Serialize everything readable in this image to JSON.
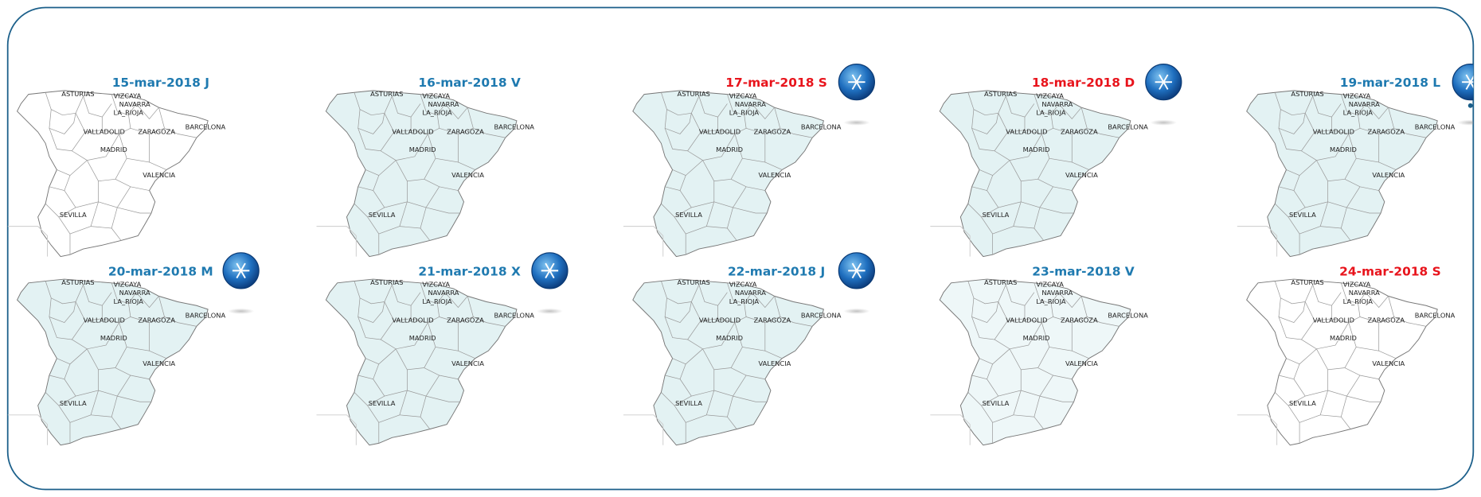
{
  "panels": [
    {
      "title": "15-mar-2018 J",
      "weekend": false,
      "snow": false,
      "map_color": "#ffffff"
    },
    {
      "title": "16-mar-2018 V",
      "weekend": false,
      "snow": false,
      "map_color": "#e3f2f3"
    },
    {
      "title": "17-mar-2018 S",
      "weekend": true,
      "snow": true,
      "map_color": "#e3f2f3"
    },
    {
      "title": "18-mar-2018 D",
      "weekend": true,
      "snow": true,
      "map_color": "#e3f2f3"
    },
    {
      "title": "19-mar-2018 L",
      "weekend": false,
      "snow": true,
      "map_color": "#e3f2f3"
    },
    {
      "title": "20-mar-2018 M",
      "weekend": false,
      "snow": true,
      "map_color": "#e3f2f3"
    },
    {
      "title": "21-mar-2018 X",
      "weekend": false,
      "snow": true,
      "map_color": "#e3f2f3"
    },
    {
      "title": "22-mar-2018 J",
      "weekend": false,
      "snow": true,
      "map_color": "#e3f2f3"
    },
    {
      "title": "23-mar-2018 V",
      "weekend": false,
      "snow": false,
      "map_color": "#eef7f8"
    },
    {
      "title": "24-mar-2018 S",
      "weekend": true,
      "snow": false,
      "map_color": "#ffffff"
    }
  ],
  "map_labels": [
    "ASTURIAS",
    "VIZCAYA",
    "NAVARRA",
    "LA_RIOJA",
    "VALLADOLID",
    "ZARAGOZA",
    "BARCELONA",
    "MADRID",
    "VALENCIA",
    "SEVILLA"
  ]
}
